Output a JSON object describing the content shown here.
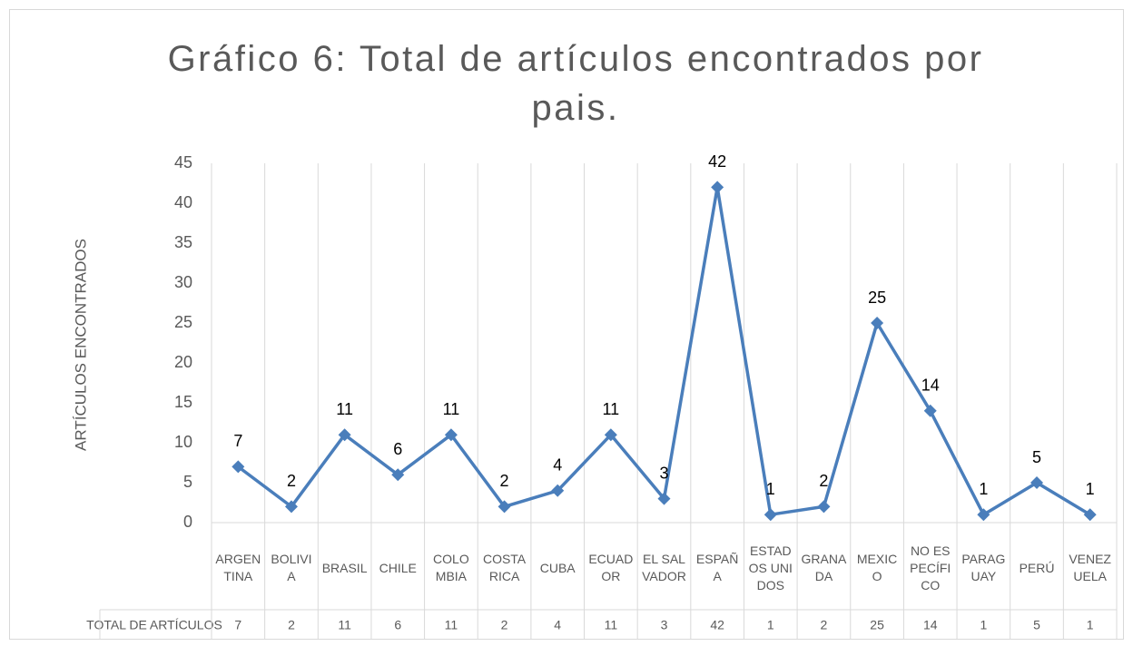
{
  "chart_data": {
    "type": "line",
    "title": "Gráfico 6: Total de artículos encontrados por pais.",
    "y_label": "ARTÍCULOS ENCONTRADOS",
    "table_row_label": "TOTAL DE ARTÍCULOS",
    "categories": [
      "ARGENTINA",
      "BOLIVIA",
      "BRASIL",
      "CHILE",
      "COLOMBIA",
      "COSTA RICA",
      "CUBA",
      "ECUADOR",
      "EL SALVADOR",
      "ESPAÑA",
      "ESTADOS UNIDOS",
      "GRANADA",
      "MEXICO",
      "NO ESPECÍFICO",
      "PARAGUAY",
      "PERÚ",
      "VENEZUELA"
    ],
    "values": [
      7,
      2,
      11,
      6,
      11,
      2,
      4,
      11,
      3,
      42,
      1,
      2,
      25,
      14,
      1,
      5,
      1
    ],
    "color": "#4a7ebb",
    "ylim": [
      0,
      45
    ],
    "yticks": [
      0,
      5,
      10,
      15,
      20,
      25,
      30,
      35,
      40,
      45
    ],
    "grid": false
  }
}
